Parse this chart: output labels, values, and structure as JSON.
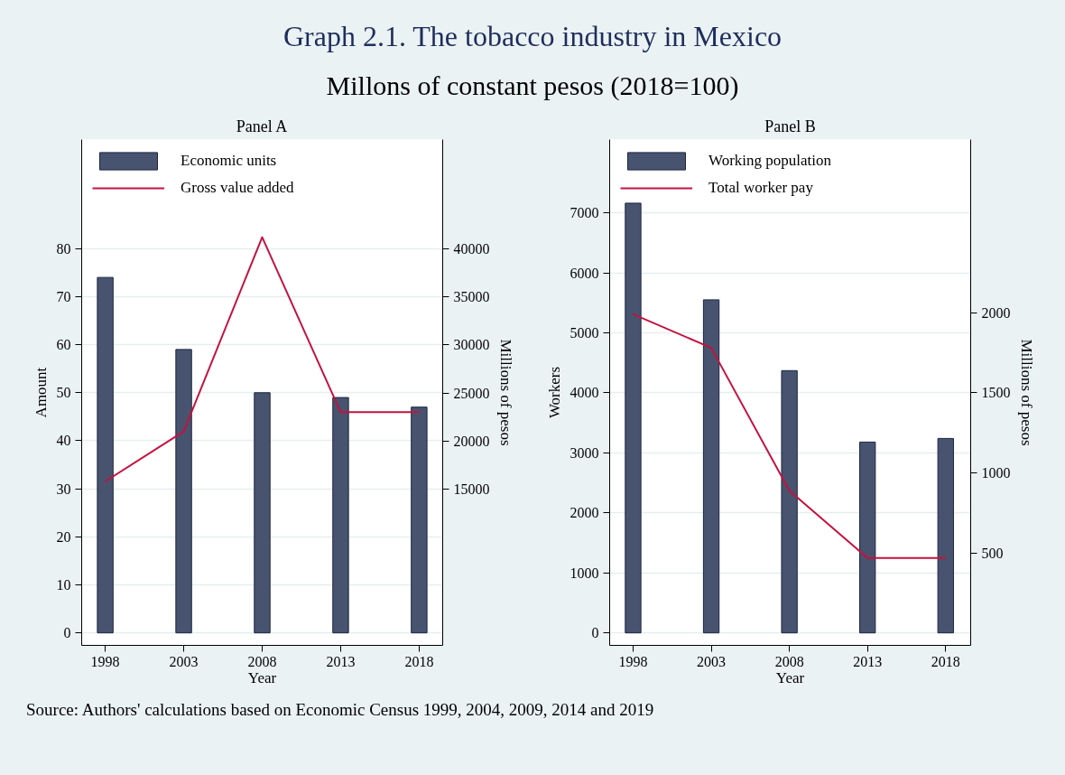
{
  "chart_data": [
    {
      "type": "bar",
      "title": "Panel A",
      "xlabel": "Year",
      "ylabel": "Amount",
      "y2label": "Millions of pesos",
      "annotations": [
        "Graph 2.1. The tobacco industry in Mexico",
        "Millons of constant pesos (2018=100)",
        "Source: Authors' calculations based on Economic Census 1999, 2004, 2009, 2014 and 2019"
      ],
      "x": [
        1998,
        2003,
        2008,
        2013,
        2018
      ],
      "series": [
        {
          "name": "Economic units",
          "color": "#48536f",
          "values": [
            74,
            59,
            50,
            49,
            47
          ]
        },
        {
          "name": "Gross value added",
          "type": "line",
          "axis": "y2",
          "color": "#c4123f",
          "values": [
            15800,
            21000,
            41200,
            23000,
            23000
          ]
        }
      ],
      "xlim": [
        1996.5,
        2019.5
      ],
      "xticks": [
        1998,
        2003,
        2008,
        2013,
        2018
      ],
      "ylim": [
        -2.6,
        102.7
      ],
      "yticks": [
        0,
        10,
        20,
        30,
        40,
        50,
        60,
        70,
        80
      ],
      "y2lim": [
        -1250,
        51350
      ],
      "y2ticks": [
        15000,
        20000,
        25000,
        30000,
        35000,
        40000
      ],
      "grid": "y",
      "legend": "top left",
      "marker": "none",
      "line_style": "solid"
    },
    {
      "type": "bar",
      "title": "Panel B",
      "xlabel": "Year",
      "ylabel": "Workers",
      "y2label": "Millions of pesos",
      "x": [
        1998,
        2003,
        2008,
        2013,
        2018
      ],
      "series": [
        {
          "name": "Working population",
          "color": "#48536f",
          "values": [
            7160,
            5550,
            4370,
            3180,
            3240
          ]
        },
        {
          "name": "Total worker pay",
          "type": "line",
          "axis": "y2",
          "color": "#c4123f",
          "values": [
            1990,
            1780,
            890,
            470,
            470
          ]
        }
      ],
      "xlim": [
        1996.5,
        2019.6
      ],
      "xticks": [
        1998,
        2003,
        2008,
        2013,
        2018
      ],
      "ylim": [
        -208,
        8220
      ],
      "yticks": [
        0,
        1000,
        2000,
        3000,
        4000,
        5000,
        6000,
        7000
      ],
      "y2lim": [
        -74,
        3078
      ],
      "y2ticks": [
        500,
        1000,
        1500,
        2000
      ],
      "grid": "y",
      "legend": "top left",
      "marker": "none",
      "line_style": "solid"
    }
  ]
}
